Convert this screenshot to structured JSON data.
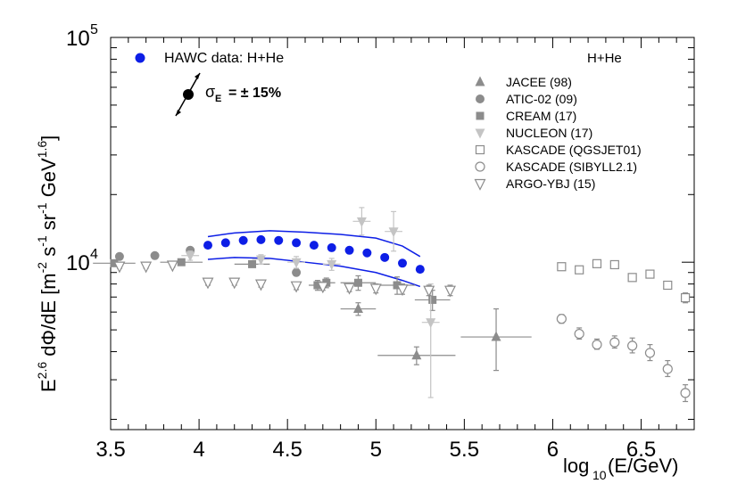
{
  "chart_data": {
    "type": "scatter",
    "title": "",
    "xlabel": "log10(E/GeV)",
    "ylabel": "E^2.6 dΦ/dE [m^-2 s^-1 sr^-1 GeV^1.6]",
    "xlim": [
      3.5,
      6.8
    ],
    "ylim": [
      1800,
      100000
    ],
    "yscale": "log",
    "x_tick_labels": [
      "3.5",
      "4",
      "4.5",
      "5",
      "5.5",
      "6",
      "6.5"
    ],
    "x_ticks": [
      3.5,
      4.0,
      4.5,
      5.0,
      5.5,
      6.0,
      6.5
    ],
    "y_tick_labels": [
      {
        "base": "10",
        "exp": "4",
        "value": 10000
      },
      {
        "base": "10",
        "exp": "5",
        "value": 100000
      }
    ],
    "legend_header": "H+He",
    "hawc_label": "HAWC data: H+He",
    "sigma_label": "σ",
    "sigma_sub": "E",
    "sigma_value": "= ± 15%",
    "series": [
      {
        "name": "JACEE (98)",
        "marker": "triangle-up",
        "color": "#8c8c8c",
        "points": [
          {
            "x": 4.9,
            "y": 6200,
            "xerr": 0.1,
            "ylo": 5800,
            "yhi": 6600
          },
          {
            "x": 5.23,
            "y": 3850,
            "xerr": 0.22,
            "ylo": 3500,
            "yhi": 4200
          },
          {
            "x": 5.68,
            "y": 4650,
            "xerr": 0.2,
            "ylo": 3300,
            "yhi": 6200
          }
        ]
      },
      {
        "name": "ATIC-02 (09)",
        "marker": "circle",
        "color": "#8c8c8c",
        "points": [
          {
            "x": 3.55,
            "y": 10600,
            "xerr": 0.02,
            "ylo": 10400,
            "yhi": 10800
          },
          {
            "x": 3.75,
            "y": 10700,
            "xerr": 0.02,
            "ylo": 10500,
            "yhi": 10900
          },
          {
            "x": 3.95,
            "y": 11300,
            "xerr": 0.02,
            "ylo": 11000,
            "yhi": 11600
          },
          {
            "x": 4.55,
            "y": 9000,
            "xerr": 0.02,
            "ylo": 8700,
            "yhi": 9300
          }
        ]
      },
      {
        "name": "CREAM (17)",
        "marker": "square",
        "color": "#8c8c8c",
        "points": [
          {
            "x": 3.52,
            "y": 9900,
            "xerr": 0.12,
            "ylo": 9700,
            "yhi": 10100
          },
          {
            "x": 3.9,
            "y": 10000,
            "xerr": 0.12,
            "ylo": 9800,
            "yhi": 10200
          },
          {
            "x": 4.3,
            "y": 9800,
            "xerr": 0.1,
            "ylo": 9500,
            "yhi": 10100
          },
          {
            "x": 4.67,
            "y": 7900,
            "xerr": 0.05,
            "ylo": 7500,
            "yhi": 8300
          },
          {
            "x": 4.72,
            "y": 8100,
            "xerr": 0.05,
            "ylo": 7700,
            "yhi": 8500
          },
          {
            "x": 4.9,
            "y": 8100,
            "xerr": 0.1,
            "ylo": 7500,
            "yhi": 8700
          },
          {
            "x": 5.12,
            "y": 7900,
            "xerr": 0.1,
            "ylo": 7200,
            "yhi": 8600
          },
          {
            "x": 5.32,
            "y": 6800,
            "xerr": 0.1,
            "ylo": 6100,
            "yhi": 7500
          }
        ]
      },
      {
        "name": "NUCLEON (17)",
        "marker": "triangle-down",
        "color": "#c4c4c4",
        "points": [
          {
            "x": 3.95,
            "y": 10700,
            "xerr": 0.05,
            "ylo": 10200,
            "yhi": 11200
          },
          {
            "x": 4.35,
            "y": 10300,
            "xerr": 0.05,
            "ylo": 9800,
            "yhi": 10800
          },
          {
            "x": 4.55,
            "y": 10000,
            "xerr": 0.05,
            "ylo": 9400,
            "yhi": 10600
          },
          {
            "x": 4.75,
            "y": 9800,
            "xerr": 0.05,
            "ylo": 9200,
            "yhi": 10400
          },
          {
            "x": 4.92,
            "y": 15200,
            "xerr": 0.05,
            "ylo": 13200,
            "yhi": 17500
          },
          {
            "x": 5.1,
            "y": 13700,
            "xerr": 0.05,
            "ylo": 11200,
            "yhi": 16800
          },
          {
            "x": 5.31,
            "y": 5400,
            "xerr": 0.05,
            "ylo": 2500,
            "yhi": 8000
          }
        ]
      },
      {
        "name": "KASCADE (QGSJET01)",
        "marker": "open-square",
        "color": "#8c8c8c",
        "points": [
          {
            "x": 6.05,
            "y": 9550,
            "xerr": 0,
            "ylo": 9350,
            "yhi": 9750
          },
          {
            "x": 6.15,
            "y": 9250,
            "xerr": 0,
            "ylo": 9050,
            "yhi": 9450
          },
          {
            "x": 6.25,
            "y": 9850,
            "xerr": 0,
            "ylo": 9650,
            "yhi": 10050
          },
          {
            "x": 6.35,
            "y": 9750,
            "xerr": 0,
            "ylo": 9550,
            "yhi": 9950
          },
          {
            "x": 6.45,
            "y": 8550,
            "xerr": 0,
            "ylo": 8350,
            "yhi": 8750
          },
          {
            "x": 6.55,
            "y": 8850,
            "xerr": 0,
            "ylo": 8650,
            "yhi": 9050
          },
          {
            "x": 6.65,
            "y": 7900,
            "xerr": 0,
            "ylo": 7650,
            "yhi": 8150
          },
          {
            "x": 6.75,
            "y": 6950,
            "xerr": 0,
            "ylo": 6600,
            "yhi": 7300
          }
        ]
      },
      {
        "name": "KASCADE (SIBYLL2.1)",
        "marker": "open-circle",
        "color": "#8c8c8c",
        "points": [
          {
            "x": 6.05,
            "y": 5600,
            "xerr": 0,
            "ylo": 5350,
            "yhi": 5850
          },
          {
            "x": 6.15,
            "y": 4800,
            "xerr": 0,
            "ylo": 4550,
            "yhi": 5100
          },
          {
            "x": 6.25,
            "y": 4300,
            "xerr": 0,
            "ylo": 4100,
            "yhi": 4550
          },
          {
            "x": 6.35,
            "y": 4400,
            "xerr": 0,
            "ylo": 4150,
            "yhi": 4700
          },
          {
            "x": 6.45,
            "y": 4250,
            "xerr": 0,
            "ylo": 3950,
            "yhi": 4600
          },
          {
            "x": 6.55,
            "y": 3950,
            "xerr": 0,
            "ylo": 3650,
            "yhi": 4300
          },
          {
            "x": 6.65,
            "y": 3350,
            "xerr": 0,
            "ylo": 3100,
            "yhi": 3650
          },
          {
            "x": 6.75,
            "y": 2620,
            "xerr": 0,
            "ylo": 2400,
            "yhi": 2850
          }
        ]
      },
      {
        "name": "ARGO-YBJ (15)",
        "marker": "open-triangle-down",
        "color": "#8c8c8c",
        "points": [
          {
            "x": 3.55,
            "y": 9600,
            "xerr": 0,
            "ylo": 9400,
            "yhi": 9800
          },
          {
            "x": 3.7,
            "y": 9600,
            "xerr": 0,
            "ylo": 9400,
            "yhi": 9800
          },
          {
            "x": 3.85,
            "y": 9700,
            "xerr": 0,
            "ylo": 9500,
            "yhi": 9900
          },
          {
            "x": 4.05,
            "y": 8150,
            "xerr": 0,
            "ylo": 7900,
            "yhi": 8400
          },
          {
            "x": 4.2,
            "y": 8150,
            "xerr": 0,
            "ylo": 7900,
            "yhi": 8400
          },
          {
            "x": 4.35,
            "y": 8000,
            "xerr": 0,
            "ylo": 7750,
            "yhi": 8250
          },
          {
            "x": 4.55,
            "y": 7850,
            "xerr": 0,
            "ylo": 7550,
            "yhi": 8150
          },
          {
            "x": 4.7,
            "y": 7800,
            "xerr": 0,
            "ylo": 7500,
            "yhi": 8100
          },
          {
            "x": 4.85,
            "y": 7700,
            "xerr": 0,
            "ylo": 7400,
            "yhi": 8000
          },
          {
            "x": 5.0,
            "y": 7650,
            "xerr": 0,
            "ylo": 7300,
            "yhi": 8000
          },
          {
            "x": 5.15,
            "y": 7600,
            "xerr": 0,
            "ylo": 7200,
            "yhi": 8000
          },
          {
            "x": 5.3,
            "y": 7500,
            "xerr": 0,
            "ylo": 7100,
            "yhi": 7900
          },
          {
            "x": 5.42,
            "y": 7500,
            "xerr": 0,
            "ylo": 7100,
            "yhi": 7900
          }
        ]
      }
    ],
    "hawc": {
      "name": "HAWC data: H+He",
      "color": "#0d1ee6",
      "band_color": "#0d1ee6",
      "points": [
        {
          "x": 4.05,
          "y": 11900
        },
        {
          "x": 4.15,
          "y": 12200
        },
        {
          "x": 4.25,
          "y": 12500
        },
        {
          "x": 4.35,
          "y": 12600
        },
        {
          "x": 4.45,
          "y": 12500
        },
        {
          "x": 4.55,
          "y": 12200
        },
        {
          "x": 4.65,
          "y": 11900
        },
        {
          "x": 4.75,
          "y": 11600
        },
        {
          "x": 4.85,
          "y": 11300
        },
        {
          "x": 4.95,
          "y": 11000
        },
        {
          "x": 5.05,
          "y": 10500
        },
        {
          "x": 5.15,
          "y": 9900
        },
        {
          "x": 5.25,
          "y": 9300
        }
      ],
      "band_upper": [
        {
          "x": 4.05,
          "y": 13000
        },
        {
          "x": 4.2,
          "y": 13500
        },
        {
          "x": 4.4,
          "y": 13800
        },
        {
          "x": 4.6,
          "y": 13600
        },
        {
          "x": 4.8,
          "y": 13300
        },
        {
          "x": 5.0,
          "y": 12800
        },
        {
          "x": 5.15,
          "y": 11800
        },
        {
          "x": 5.25,
          "y": 10600
        }
      ],
      "band_lower": [
        {
          "x": 4.05,
          "y": 10300
        },
        {
          "x": 4.2,
          "y": 10500
        },
        {
          "x": 4.4,
          "y": 10400
        },
        {
          "x": 4.6,
          "y": 10000
        },
        {
          "x": 4.8,
          "y": 9600
        },
        {
          "x": 5.0,
          "y": 9000
        },
        {
          "x": 5.15,
          "y": 8300
        },
        {
          "x": 5.25,
          "y": 7800
        }
      ]
    }
  }
}
